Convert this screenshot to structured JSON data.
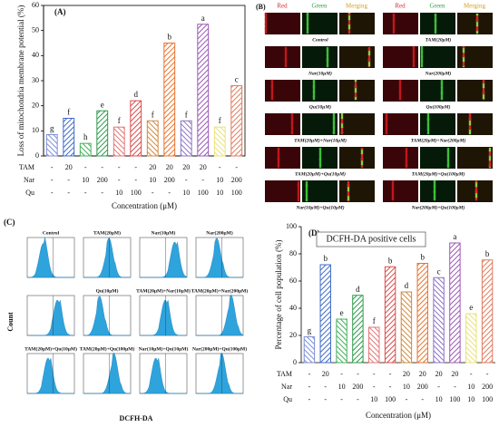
{
  "chart_data": [
    {
      "type": "bar",
      "title": "(A)",
      "ylabel": "Loss of mitochondria membrane potential (%)",
      "xlabel": "Concentration (μM)",
      "values": [
        8.5,
        15,
        5,
        18,
        11.5,
        22,
        14,
        45,
        14,
        52.5,
        11.5,
        28
      ],
      "letters": [
        "g",
        "f",
        "h",
        "e",
        "f",
        "d",
        "f",
        "b",
        "f",
        "a",
        "f",
        "c"
      ],
      "colors": [
        "#7d8fd6",
        "#3f6cc8",
        "#45b05c",
        "#2f9a4c",
        "#e27676",
        "#d94b4b",
        "#d08a3e",
        "#e8732c",
        "#8f72c4",
        "#9b59b6",
        "#e9e27a",
        "#e07b5c"
      ],
      "treatments": [
        {
          "label": "TAM",
          "values": [
            "-",
            "20",
            "-",
            "-",
            "-",
            "-",
            "20",
            "20",
            "20",
            "20",
            "-",
            "-"
          ]
        },
        {
          "label": "Nar",
          "values": [
            "-",
            "-",
            "10",
            "200",
            "-",
            "-",
            "10",
            "200",
            "-",
            "-",
            "10",
            "200"
          ]
        },
        {
          "label": "Qu",
          "values": [
            "-",
            "-",
            "-",
            "-",
            "10",
            "100",
            "-",
            "-",
            "10",
            "100",
            "10",
            "100"
          ]
        }
      ],
      "ylim": [
        0,
        60
      ],
      "yticks": [
        0,
        10,
        20,
        30,
        40,
        50,
        60
      ]
    },
    {
      "type": "bar",
      "title": "(D)",
      "subtitle": "DCFH-DA positive cells",
      "ylabel": "Percentage of cell population (%)",
      "xlabel": "Concentration (μM)",
      "values": [
        19,
        72,
        32,
        49.5,
        26,
        70.5,
        52,
        73,
        62.5,
        88,
        36,
        75.5
      ],
      "letters": [
        "g",
        "b",
        "e",
        "d",
        "f",
        "b",
        "d",
        "b",
        "c",
        "a",
        "e",
        "b"
      ],
      "colors": [
        "#7d8fd6",
        "#3f6cc8",
        "#45b05c",
        "#2f9a4c",
        "#e27676",
        "#d94b4b",
        "#d08a3e",
        "#e8732c",
        "#8f72c4",
        "#9b59b6",
        "#e9e27a",
        "#e07b5c"
      ],
      "treatments": [
        {
          "label": "TAM",
          "values": [
            "-",
            "20",
            "-",
            "-",
            "-",
            "-",
            "20",
            "20",
            "20",
            "20",
            "-",
            "-"
          ]
        },
        {
          "label": "Nar",
          "values": [
            "-",
            "-",
            "10",
            "200",
            "-",
            "-",
            "10",
            "200",
            "-",
            "-",
            "10",
            "200"
          ]
        },
        {
          "label": "Qu",
          "values": [
            "-",
            "-",
            "-",
            "-",
            "10",
            "100",
            "-",
            "-",
            "10",
            "100",
            "10",
            "100"
          ]
        }
      ],
      "ylim": [
        0,
        100
      ],
      "yticks": [
        0,
        20,
        40,
        60,
        80,
        100
      ]
    }
  ],
  "panel_b": {
    "label": "(B)",
    "channels": [
      "Red",
      "Green",
      "Merging"
    ],
    "captions": [
      "Control",
      "TAM(20μM)",
      "Nar(10μM)",
      "Nar(200μM)",
      "Qu(10μM)",
      "Qu(100μM)",
      "TAM(20μM)+Nar(10μM)",
      "TAM(20μM)+Nar(200μM)",
      "TAM(20μM)+Qu(10μM)",
      "TAM(20μM)+Qu(100μM)",
      "Nar(10μM)+Qu(10μM)",
      "Nar(200μM)+Qu(100μM)"
    ]
  },
  "panel_c": {
    "label": "(C)",
    "ylabel": "Count",
    "xlabel": "DCFH-DA",
    "titles": [
      "Control",
      "TAM(20μM)",
      "Nar(10μM)",
      "Nar(200μM)",
      "Qu(10μM)",
      "TAM(20μM)+Nar(10μM)",
      "TAM(20μM)+Nar(200μM)",
      "TAM(20μM)+Qu(10μM)",
      "TAM(20μM)+Qu(100μM)",
      "Nar(10μM)+Qu(10μM)",
      "Nar(200μM)+Qu(100μM)"
    ]
  }
}
